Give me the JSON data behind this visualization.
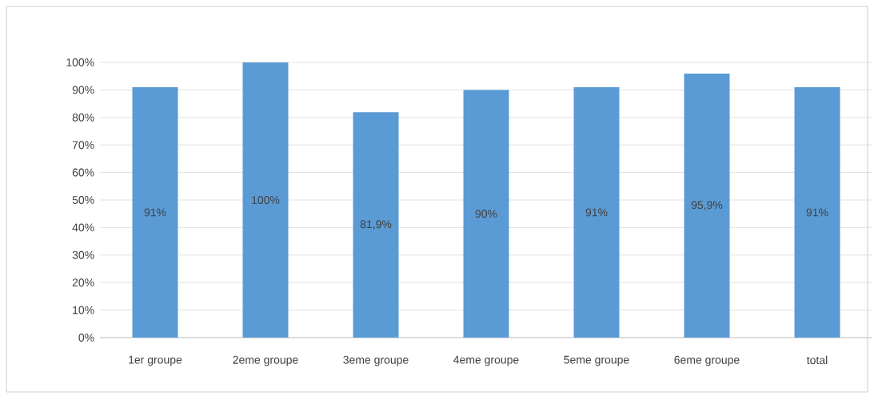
{
  "chart_data": {
    "type": "bar",
    "categories": [
      "1er groupe",
      "2eme groupe",
      "3eme groupe",
      "4eme groupe",
      "5eme groupe",
      "6eme groupe",
      "total"
    ],
    "values": [
      91,
      100,
      81.9,
      90,
      91,
      95.9,
      91
    ],
    "value_labels": [
      "91%",
      "100%",
      "81,9%",
      "90%",
      "91%",
      "95,9%",
      "91%"
    ],
    "color": "#5b9bd5",
    "ylim": [
      0,
      100
    ],
    "yticks": [
      {
        "value": 0,
        "label": "0%"
      },
      {
        "value": 10,
        "label": "10%"
      },
      {
        "value": 20,
        "label": "20%"
      },
      {
        "value": 30,
        "label": "30%"
      },
      {
        "value": 40,
        "label": "40%"
      },
      {
        "value": 50,
        "label": "50%"
      },
      {
        "value": 60,
        "label": "60%"
      },
      {
        "value": 70,
        "label": "70%"
      },
      {
        "value": 80,
        "label": "80%"
      },
      {
        "value": 90,
        "label": "90%"
      },
      {
        "value": 100,
        "label": "100%"
      }
    ],
    "grid": "y"
  }
}
